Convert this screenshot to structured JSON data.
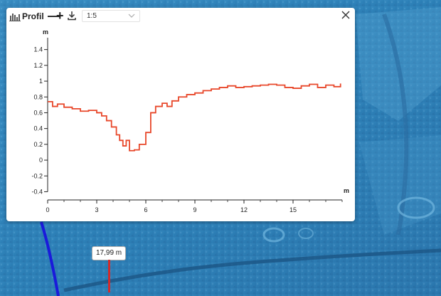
{
  "panel": {
    "title": "Profil",
    "zoom_out_label": "—",
    "zoom_in_label": "+",
    "scale_value": "1:5",
    "icons": [
      "profile-chart-icon",
      "download-icon",
      "chevron-down-icon",
      "close-icon"
    ]
  },
  "chart_data": {
    "type": "line",
    "xlabel": "m",
    "ylabel": "m",
    "xlim": [
      0,
      18
    ],
    "ylim": [
      -0.45,
      1.55
    ],
    "x_ticks": [
      "0",
      "3",
      "6",
      "9",
      "12",
      "15"
    ],
    "y_ticks": [
      "1.4",
      "1.2",
      "1",
      "0.8",
      "0.6",
      "0.4",
      "0.2",
      "0",
      "-0.2",
      "-0.4"
    ],
    "series": [
      {
        "x": [
          0,
          0.3,
          0.6,
          1.0,
          1.5,
          2.0,
          2.5,
          3.0,
          3.3,
          3.6,
          3.9,
          4.2,
          4.4,
          4.6,
          4.8,
          5.0,
          5.3,
          5.6,
          6.0,
          6.3,
          6.6,
          7.0,
          7.3,
          7.6,
          8.0,
          8.5,
          9.0,
          9.5,
          10.0,
          10.5,
          11.0,
          11.5,
          12.0,
          12.5,
          13.0,
          13.5,
          14.0,
          14.5,
          15.0,
          15.5,
          16.0,
          16.5,
          17.0,
          17.5,
          17.9
        ],
        "y": [
          0.74,
          0.68,
          0.71,
          0.67,
          0.65,
          0.62,
          0.63,
          0.6,
          0.56,
          0.5,
          0.42,
          0.32,
          0.25,
          0.18,
          0.25,
          0.12,
          0.13,
          0.2,
          0.35,
          0.6,
          0.68,
          0.72,
          0.68,
          0.75,
          0.8,
          0.83,
          0.85,
          0.88,
          0.9,
          0.92,
          0.94,
          0.92,
          0.93,
          0.94,
          0.95,
          0.96,
          0.95,
          0.92,
          0.91,
          0.94,
          0.96,
          0.92,
          0.95,
          0.93,
          0.97
        ],
        "color": "#e8472a"
      }
    ]
  },
  "map": {
    "marker_label": "17,99 m",
    "colors": {
      "water": "#2f86c0",
      "route": "#1a1adb",
      "marker": "#d42a2a"
    }
  }
}
